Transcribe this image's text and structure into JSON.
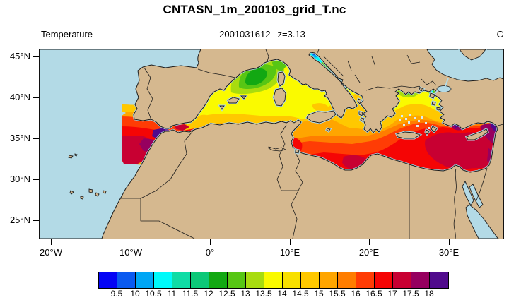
{
  "title": "CNTASN_1m_200103_grid_T.nc",
  "header": {
    "variable": "Temperature",
    "datetime": "2001031612",
    "level": "z=3.13",
    "units": "C"
  },
  "axes": {
    "x_labels": [
      "20°W",
      "10°W",
      "0°",
      "10°E",
      "20°E",
      "30°E"
    ],
    "y_labels": [
      "45°N",
      "40°N",
      "35°N",
      "30°N",
      "25°N"
    ]
  },
  "colorbar": {
    "tick_labels": [
      "9.5",
      "10",
      "10.5",
      "11",
      "11.5",
      "12",
      "12.5",
      "13",
      "13.5",
      "14",
      "14.5",
      "15",
      "15.5",
      "16",
      "16.5",
      "17",
      "17.5",
      "18"
    ],
    "colors": [
      "#0505F5",
      "#0A5AF0",
      "#00A6F5",
      "#00FAFA",
      "#0FDCA5",
      "#0CC878",
      "#12A812",
      "#57C614",
      "#A8DC0F",
      "#FAFA00",
      "#F8E000",
      "#FFC800",
      "#FFA500",
      "#FF7D00",
      "#FF3C05",
      "#F50505",
      "#C80032",
      "#96005F",
      "#500A8C"
    ]
  },
  "map": {
    "land_color": "#D5B88F",
    "ocean_color": "#B3DAE6",
    "nodata_cell_color": "#D9EDF3",
    "coast_color": "#1c1c1c"
  },
  "chart_data": {
    "type": "heatmap",
    "subtype": "filled-contour-map",
    "title": "CNTASN_1m_200103_grid_T.nc",
    "variable": "Temperature",
    "units": "C",
    "datetime": "2001031612",
    "level": "z=3.13",
    "lon_range_deg": [
      -21.4,
      36.9
    ],
    "lat_range_deg": [
      22.8,
      45.9
    ],
    "contour_levels_c": [
      9.5,
      10,
      10.5,
      11,
      11.5,
      12,
      12.5,
      13,
      13.5,
      14,
      14.5,
      15,
      15.5,
      16,
      16.5,
      17,
      17.5,
      18
    ],
    "region_values_c": [
      {
        "region": "North Adriatic",
        "value": 10.5
      },
      {
        "region": "Mid Adriatic",
        "value": 12.5
      },
      {
        "region": "Gulf of Lion core",
        "value": 12.5
      },
      {
        "region": "NW Mediterranean",
        "value": 13
      },
      {
        "region": "North Aegean",
        "value": 12.5
      },
      {
        "region": "Balearic Sea / Tyrrhenian",
        "value": 14
      },
      {
        "region": "Central Mediterranean",
        "value": 14.75
      },
      {
        "region": "Algerian coast",
        "value": 15.25
      },
      {
        "region": "Alboran Sea",
        "value": 15.5
      },
      {
        "region": "South-central Med / Gulf of Sirte",
        "value": 16.5
      },
      {
        "region": "Atlantic box north (off Portugal)",
        "value": 15
      },
      {
        "region": "Atlantic box south (off Morocco)",
        "value": 17.25
      },
      {
        "region": "Atlantic box Morocco coast",
        "value": 18.5
      },
      {
        "region": "Levantine basin",
        "value": 17
      },
      {
        "region": "SE Levantine / Cilician coast",
        "value": 18.5
      },
      {
        "region": "Black Sea",
        "value": null
      },
      {
        "region": "Sea of Marmara",
        "value": null
      },
      {
        "region": "Red Sea",
        "value": null
      }
    ],
    "legend_position": "bottom",
    "grid": false
  }
}
